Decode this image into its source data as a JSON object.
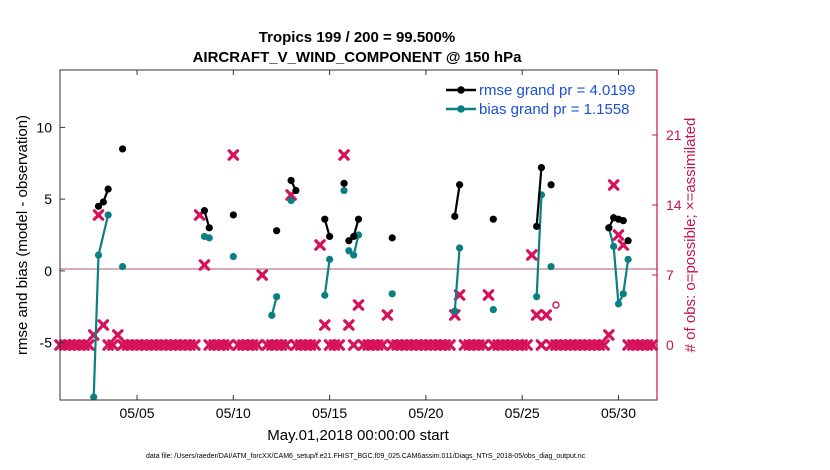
{
  "chart_data": {
    "type": "line",
    "title": "Tropics 199 / 200 = 99.500%",
    "subtitle": "AIRCRAFT_V_WIND_COMPONENT @ 150 hPa",
    "xlabel": "May.01,2018 00:00:00 start",
    "ylabel": "rmse and bias (model - observation)",
    "ylabel_right": "# of obs: o=possible; ×=assimilated",
    "xlim": [
      1,
      32
    ],
    "ylim": [
      -9,
      14
    ],
    "ylim_right": [
      -5.5,
      27.5
    ],
    "xticks": [
      5,
      10,
      15,
      20,
      25,
      30
    ],
    "xtick_labels": [
      "05/05",
      "05/10",
      "05/15",
      "05/20",
      "05/25",
      "05/30"
    ],
    "yticks": [
      -5,
      0,
      5,
      10
    ],
    "yticks_right": [
      0,
      7,
      14,
      21
    ],
    "footnote": "data file: /Users/raeder/DAI/ATM_forcXX/CAM6_setup/f.e21.FHIST_BGC.f09_025.CAM6assim.011/Diags_NTrS_2018-05/obs_diag_output.nc",
    "colors": {
      "rmse": "#000000",
      "bias": "#0a8080",
      "obs": "#d6135a",
      "legend_text": "#1a4fd6",
      "zero_line": "#d4aeb4"
    },
    "series": [
      {
        "name": "rmse",
        "legend": "rmse grand pr = 4.0199",
        "segments": [
          [
            [
              3.0,
              4.5
            ],
            [
              3.25,
              4.8
            ],
            [
              3.5,
              5.7
            ]
          ],
          [
            [
              4.25,
              8.5
            ]
          ],
          [
            [
              8.5,
              4.2
            ],
            [
              8.75,
              3.0
            ]
          ],
          [
            [
              10.0,
              3.9
            ]
          ],
          [
            [
              12.25,
              2.8
            ]
          ],
          [
            [
              13.0,
              6.3
            ],
            [
              13.25,
              5.6
            ]
          ],
          [
            [
              14.75,
              3.6
            ],
            [
              15.0,
              2.4
            ]
          ],
          [
            [
              15.75,
              6.1
            ]
          ],
          [
            [
              16.0,
              2.1
            ],
            [
              16.25,
              2.4
            ],
            [
              16.5,
              3.6
            ]
          ],
          [
            [
              18.25,
              2.3
            ]
          ],
          [
            [
              21.5,
              3.8
            ],
            [
              21.75,
              6.0
            ]
          ],
          [
            [
              23.5,
              3.6
            ]
          ],
          [
            [
              25.75,
              3.1
            ],
            [
              26.0,
              7.2
            ]
          ],
          [
            [
              26.5,
              6.0
            ]
          ],
          [
            [
              29.5,
              3.0
            ],
            [
              29.75,
              3.7
            ],
            [
              30.0,
              3.6
            ],
            [
              30.25,
              3.5
            ]
          ],
          [
            [
              30.5,
              2.1
            ]
          ]
        ]
      },
      {
        "name": "bias",
        "legend": "bias grand pr = 1.1558",
        "segments": [
          [
            [
              2.75,
              -8.8
            ],
            [
              3.0,
              1.1
            ],
            [
              3.5,
              3.9
            ]
          ],
          [
            [
              4.25,
              0.3
            ]
          ],
          [
            [
              8.5,
              2.4
            ],
            [
              8.75,
              2.3
            ]
          ],
          [
            [
              10.0,
              1.0
            ]
          ],
          [
            [
              12.0,
              -3.1
            ],
            [
              12.25,
              -1.8
            ]
          ],
          [
            [
              13.0,
              4.9
            ]
          ],
          [
            [
              14.75,
              -1.7
            ],
            [
              15.0,
              0.8
            ]
          ],
          [
            [
              15.75,
              5.6
            ]
          ],
          [
            [
              16.0,
              1.4
            ],
            [
              16.25,
              1.1
            ],
            [
              16.5,
              2.5
            ]
          ],
          [
            [
              18.25,
              -1.6
            ]
          ],
          [
            [
              21.5,
              -2.8
            ],
            [
              21.75,
              1.6
            ]
          ],
          [
            [
              23.5,
              -2.7
            ]
          ],
          [
            [
              25.75,
              -1.8
            ],
            [
              26.0,
              5.3
            ]
          ],
          [
            [
              26.5,
              0.3
            ]
          ],
          [
            [
              29.5,
              3.0
            ],
            [
              29.75,
              1.7
            ],
            [
              30.0,
              -2.3
            ],
            [
              30.25,
              -1.6
            ],
            [
              30.5,
              0.8
            ]
          ]
        ]
      }
    ],
    "obs_assimilated": {
      "name": "# obs assimilated",
      "x": [
        1.0,
        1.25,
        1.5,
        1.75,
        2.0,
        2.25,
        2.5,
        2.75,
        3.0,
        3.25,
        3.5,
        3.75,
        4.0,
        4.25,
        4.5,
        4.75,
        5.0,
        5.25,
        5.5,
        5.75,
        6.0,
        6.25,
        6.5,
        6.75,
        7.0,
        7.25,
        7.5,
        7.75,
        8.0,
        8.25,
        8.5,
        8.75,
        9.0,
        9.25,
        9.5,
        9.75,
        10.0,
        10.25,
        10.5,
        10.75,
        11.0,
        11.25,
        11.5,
        11.75,
        12.0,
        12.25,
        12.5,
        12.75,
        13.0,
        13.25,
        13.5,
        13.75,
        14.0,
        14.25,
        14.5,
        14.75,
        15.0,
        15.25,
        15.5,
        15.75,
        16.0,
        16.25,
        16.5,
        16.75,
        17.0,
        17.25,
        17.5,
        17.75,
        18.0,
        18.25,
        18.5,
        18.75,
        19.0,
        19.25,
        19.5,
        19.75,
        20.0,
        20.25,
        20.5,
        20.75,
        21.0,
        21.25,
        21.5,
        21.75,
        22.0,
        22.25,
        22.5,
        22.75,
        23.0,
        23.25,
        23.5,
        23.75,
        24.0,
        24.25,
        24.5,
        24.75,
        25.0,
        25.25,
        25.5,
        25.75,
        26.0,
        26.25,
        26.5,
        26.75,
        27.0,
        27.25,
        27.5,
        27.75,
        28.0,
        28.25,
        28.5,
        28.75,
        29.0,
        29.25,
        29.5,
        29.75,
        30.0,
        30.25,
        30.5,
        30.75,
        31.0,
        31.25,
        31.5,
        31.75
      ],
      "values": [
        0,
        0,
        0,
        0,
        0,
        0,
        0,
        1,
        13,
        2,
        0,
        0,
        1,
        0,
        0,
        0,
        0,
        0,
        0,
        0,
        0,
        0,
        0,
        0,
        0,
        0,
        0,
        0,
        0,
        13,
        8,
        0,
        0,
        0,
        0,
        0,
        19,
        0,
        0,
        0,
        0,
        0,
        7,
        0,
        0,
        0,
        0,
        0,
        15,
        0,
        0,
        0,
        0,
        0,
        10,
        2,
        0,
        0,
        0,
        19,
        2,
        0,
        4,
        0,
        0,
        0,
        0,
        0,
        3,
        0,
        0,
        0,
        0,
        0,
        0,
        0,
        0,
        0,
        0,
        0,
        0,
        0,
        3,
        5,
        0,
        0,
        0,
        0,
        0,
        5,
        0,
        0,
        0,
        0,
        0,
        0,
        0,
        0,
        9,
        3,
        0,
        3,
        0,
        0,
        0,
        0,
        0,
        0,
        0,
        0,
        0,
        0,
        0,
        0,
        1,
        16,
        11,
        10,
        0,
        0,
        0,
        0,
        0,
        0
      ]
    },
    "obs_possible_extra": [
      [
        26.75,
        4
      ]
    ]
  }
}
